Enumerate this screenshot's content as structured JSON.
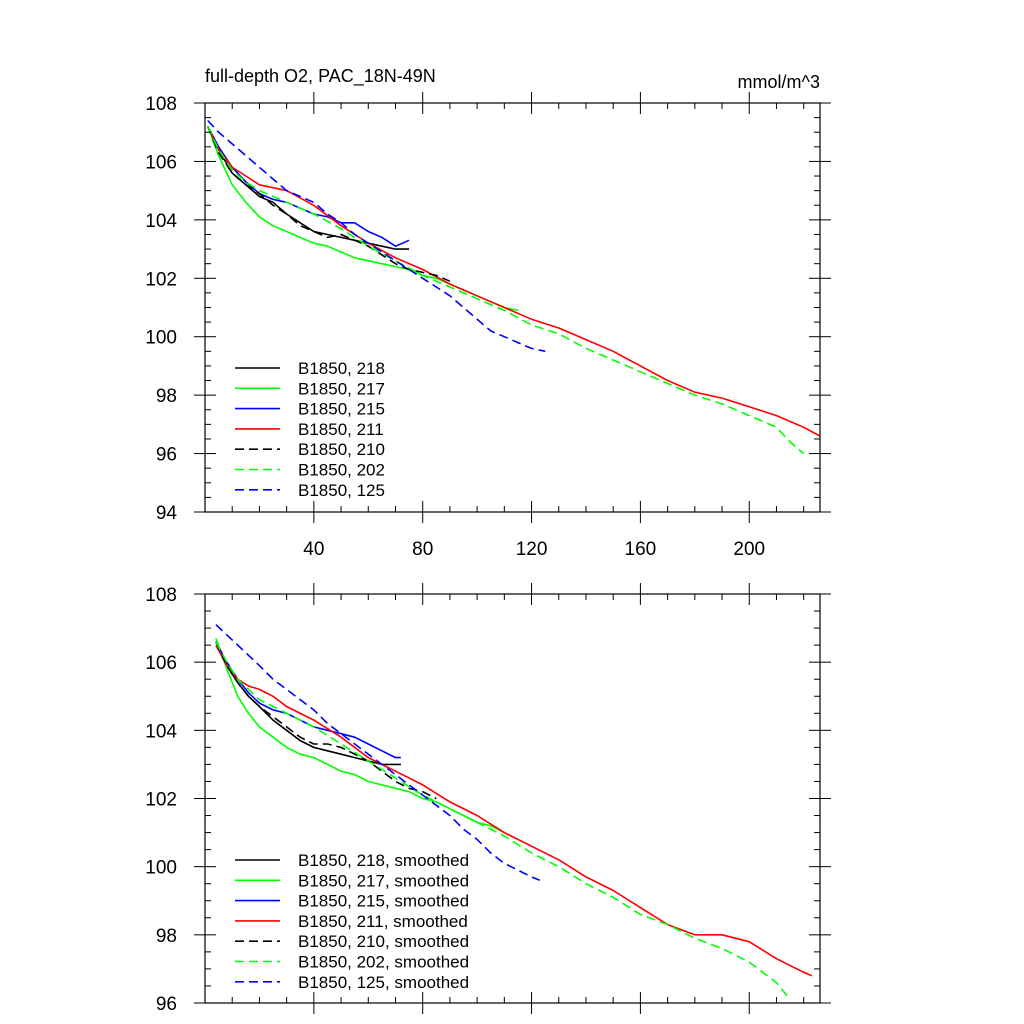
{
  "chart_data": [
    {
      "type": "line",
      "title": "full-depth O2, PAC_18N-49N",
      "units": "mmol/m^3",
      "xlim": [
        0,
        226
      ],
      "ylim": [
        94,
        108
      ],
      "x_ticks": [
        40,
        80,
        120,
        160,
        200
      ],
      "x_tick_labels": [
        "40",
        "80",
        "120",
        "160",
        "200"
      ],
      "y_ticks": [
        94,
        96,
        98,
        100,
        102,
        104,
        106,
        108
      ],
      "y_tick_labels": [
        "94",
        "96",
        "98",
        "100",
        "102",
        "104",
        "106",
        "108"
      ],
      "legend_position": "bottom-left",
      "series": [
        {
          "name": "B1850, 218",
          "color": "#000000",
          "dash": "solid",
          "x": [
            1,
            5,
            10,
            15,
            20,
            25,
            30,
            35,
            40,
            45,
            50,
            55,
            60,
            65,
            70,
            75
          ],
          "y": [
            107.2,
            106.4,
            105.6,
            105.2,
            104.8,
            104.6,
            104.2,
            103.9,
            103.6,
            103.5,
            103.4,
            103.3,
            103.2,
            103.1,
            103.0,
            103.0
          ]
        },
        {
          "name": "B1850, 217",
          "color": "#00ff00",
          "dash": "solid",
          "x": [
            1,
            5,
            10,
            15,
            20,
            25,
            30,
            35,
            40,
            45,
            50,
            55,
            60,
            65,
            70,
            75,
            80,
            85,
            90,
            95,
            100,
            105,
            110,
            115
          ],
          "y": [
            107.2,
            106.2,
            105.2,
            104.6,
            104.1,
            103.8,
            103.6,
            103.4,
            103.2,
            103.1,
            102.9,
            102.7,
            102.6,
            102.5,
            102.4,
            102.3,
            102.1,
            102.0,
            101.8,
            101.6,
            101.4,
            101.2,
            101.0,
            100.9
          ]
        },
        {
          "name": "B1850, 215",
          "color": "#0000ff",
          "dash": "solid",
          "x": [
            1,
            5,
            10,
            15,
            20,
            25,
            30,
            35,
            40,
            45,
            50,
            55,
            60,
            65,
            70,
            75
          ],
          "y": [
            107.2,
            106.5,
            105.8,
            105.3,
            104.9,
            104.7,
            104.6,
            104.4,
            104.2,
            104.1,
            103.9,
            103.9,
            103.6,
            103.4,
            103.1,
            103.3
          ]
        },
        {
          "name": "B1850, 211",
          "color": "#ff0000",
          "dash": "solid",
          "x": [
            1,
            5,
            10,
            15,
            20,
            25,
            30,
            40,
            50,
            60,
            70,
            80,
            90,
            100,
            110,
            120,
            130,
            140,
            150,
            160,
            170,
            180,
            190,
            200,
            210,
            220,
            226
          ],
          "y": [
            107.2,
            106.4,
            105.8,
            105.5,
            105.2,
            105.1,
            105.0,
            104.5,
            103.8,
            103.2,
            102.7,
            102.3,
            101.8,
            101.4,
            101.0,
            100.6,
            100.3,
            99.9,
            99.5,
            99.0,
            98.5,
            98.1,
            97.9,
            97.6,
            97.3,
            96.9,
            96.6
          ]
        },
        {
          "name": "B1850, 210",
          "color": "#000000",
          "dash": "dashed",
          "x": [
            1,
            5,
            10,
            15,
            20,
            25,
            30,
            35,
            40,
            45,
            50,
            55,
            60,
            65,
            70,
            75,
            80,
            85,
            90
          ],
          "y": [
            107.2,
            106.3,
            105.6,
            105.2,
            104.9,
            104.5,
            104.2,
            103.8,
            103.6,
            103.4,
            103.5,
            103.3,
            103.1,
            102.8,
            102.5,
            102.3,
            102.2,
            102.1,
            101.9
          ]
        },
        {
          "name": "B1850, 202",
          "color": "#00ff00",
          "dash": "dashed",
          "x": [
            1,
            5,
            10,
            15,
            20,
            30,
            40,
            50,
            60,
            70,
            80,
            90,
            100,
            110,
            120,
            130,
            140,
            150,
            160,
            170,
            180,
            190,
            200,
            210,
            215,
            220
          ],
          "y": [
            107.2,
            106.4,
            105.7,
            105.3,
            105.0,
            104.6,
            104.2,
            103.7,
            103.1,
            102.6,
            102.1,
            101.7,
            101.3,
            100.9,
            100.4,
            100.1,
            99.6,
            99.2,
            98.8,
            98.4,
            98.0,
            97.7,
            97.3,
            96.9,
            96.4,
            96.0
          ]
        },
        {
          "name": "B1850, 125",
          "color": "#0000ff",
          "dash": "dashed",
          "x": [
            1,
            5,
            10,
            15,
            20,
            25,
            30,
            35,
            40,
            45,
            50,
            55,
            60,
            65,
            70,
            75,
            80,
            85,
            90,
            95,
            100,
            105,
            110,
            115,
            120,
            125
          ],
          "y": [
            107.4,
            107.0,
            106.6,
            106.2,
            105.8,
            105.4,
            105.0,
            104.8,
            104.6,
            104.2,
            103.9,
            103.5,
            103.2,
            102.9,
            102.6,
            102.3,
            102.0,
            101.7,
            101.4,
            101.0,
            100.6,
            100.2,
            100.0,
            99.8,
            99.6,
            99.5
          ]
        }
      ]
    },
    {
      "type": "line",
      "xlim": [
        0,
        226
      ],
      "ylim": [
        96,
        108
      ],
      "y_ticks": [
        96,
        98,
        100,
        102,
        104,
        106,
        108
      ],
      "y_tick_labels": [
        "96",
        "98",
        "100",
        "102",
        "104",
        "106",
        "108"
      ],
      "legend_position": "bottom-left",
      "series": [
        {
          "name": "B1850, 218, smoothed",
          "color": "#000000",
          "dash": "solid",
          "x": [
            4,
            8,
            12,
            16,
            20,
            25,
            30,
            35,
            40,
            45,
            50,
            55,
            60,
            65,
            70,
            72
          ],
          "y": [
            106.6,
            105.9,
            105.4,
            105.0,
            104.7,
            104.3,
            104.0,
            103.7,
            103.5,
            103.4,
            103.3,
            103.2,
            103.1,
            103.0,
            103.0,
            103.0
          ]
        },
        {
          "name": "B1850, 217, smoothed",
          "color": "#00ff00",
          "dash": "solid",
          "x": [
            4,
            8,
            12,
            16,
            20,
            25,
            30,
            35,
            40,
            45,
            50,
            55,
            60,
            65,
            70,
            75,
            80,
            85,
            90,
            95,
            100,
            105,
            110
          ],
          "y": [
            106.7,
            105.8,
            105.0,
            104.5,
            104.1,
            103.8,
            103.5,
            103.3,
            103.2,
            103.0,
            102.8,
            102.7,
            102.5,
            102.4,
            102.3,
            102.2,
            102.0,
            101.9,
            101.7,
            101.5,
            101.3,
            101.2,
            101.0
          ]
        },
        {
          "name": "B1850, 215, smoothed",
          "color": "#0000ff",
          "dash": "solid",
          "x": [
            4,
            8,
            12,
            16,
            20,
            25,
            30,
            35,
            40,
            45,
            50,
            55,
            60,
            65,
            70,
            72
          ],
          "y": [
            106.6,
            106.0,
            105.5,
            105.1,
            104.8,
            104.6,
            104.5,
            104.3,
            104.1,
            104.0,
            103.9,
            103.8,
            103.6,
            103.4,
            103.2,
            103.2
          ]
        },
        {
          "name": "B1850, 211, smoothed",
          "color": "#ff0000",
          "dash": "solid",
          "x": [
            4,
            8,
            12,
            16,
            20,
            25,
            30,
            40,
            50,
            60,
            70,
            80,
            90,
            100,
            110,
            120,
            130,
            140,
            150,
            160,
            170,
            180,
            190,
            200,
            210,
            220,
            223
          ],
          "y": [
            106.5,
            105.9,
            105.5,
            105.3,
            105.2,
            105.0,
            104.7,
            104.3,
            103.8,
            103.2,
            102.8,
            102.4,
            101.9,
            101.5,
            101.0,
            100.6,
            100.2,
            99.7,
            99.3,
            98.8,
            98.3,
            98.0,
            98.0,
            97.8,
            97.3,
            96.9,
            96.8
          ]
        },
        {
          "name": "B1850, 210, smoothed",
          "color": "#000000",
          "dash": "dashed",
          "x": [
            4,
            8,
            12,
            16,
            20,
            25,
            30,
            35,
            40,
            45,
            50,
            55,
            60,
            65,
            70,
            75,
            80,
            85
          ],
          "y": [
            106.6,
            105.9,
            105.4,
            105.0,
            104.7,
            104.4,
            104.1,
            103.8,
            103.6,
            103.6,
            103.5,
            103.3,
            103.1,
            102.8,
            102.5,
            102.3,
            102.2,
            102.0
          ]
        },
        {
          "name": "B1850, 202, smoothed",
          "color": "#00ff00",
          "dash": "dashed",
          "x": [
            4,
            8,
            12,
            16,
            20,
            30,
            40,
            50,
            60,
            70,
            80,
            90,
            100,
            110,
            120,
            130,
            140,
            150,
            160,
            170,
            180,
            190,
            200,
            210,
            215
          ],
          "y": [
            106.6,
            106.0,
            105.5,
            105.2,
            104.9,
            104.5,
            104.1,
            103.6,
            103.1,
            102.6,
            102.1,
            101.7,
            101.3,
            100.9,
            100.4,
            100.0,
            99.5,
            99.1,
            98.6,
            98.3,
            97.9,
            97.6,
            97.2,
            96.6,
            96.1
          ]
        },
        {
          "name": "B1850, 125, smoothed",
          "color": "#0000ff",
          "dash": "dashed",
          "x": [
            4,
            8,
            12,
            16,
            20,
            25,
            30,
            35,
            40,
            45,
            50,
            55,
            60,
            65,
            70,
            75,
            80,
            85,
            90,
            95,
            100,
            105,
            110,
            115,
            120,
            123
          ],
          "y": [
            107.1,
            106.8,
            106.5,
            106.2,
            105.9,
            105.5,
            105.2,
            104.9,
            104.6,
            104.2,
            103.9,
            103.6,
            103.3,
            103.0,
            102.7,
            102.4,
            102.1,
            101.8,
            101.5,
            101.1,
            100.8,
            100.4,
            100.1,
            99.9,
            99.7,
            99.6
          ]
        }
      ]
    }
  ]
}
